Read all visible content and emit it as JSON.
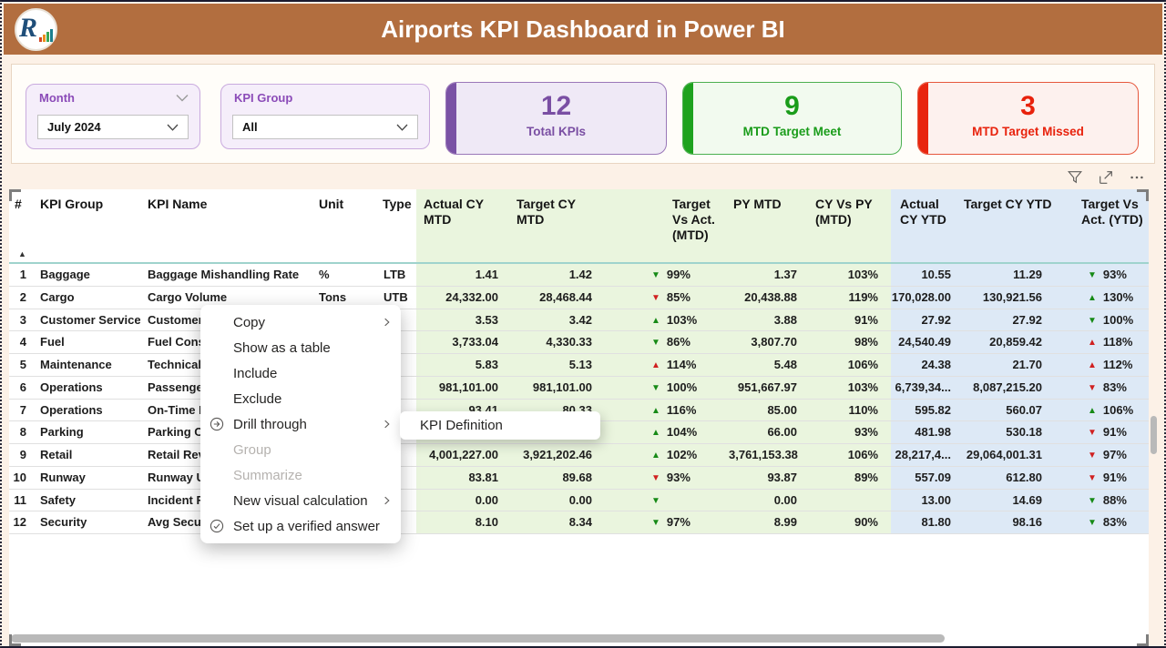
{
  "header": {
    "title": "Airports KPI Dashboard in Power BI",
    "logo_text": "R"
  },
  "slicers": {
    "month": {
      "label": "Month",
      "value": "July 2024"
    },
    "group": {
      "label": "KPI Group",
      "value": "All"
    }
  },
  "cards": [
    {
      "value": "12",
      "label": "Total KPIs",
      "color": "#7a4fa3"
    },
    {
      "value": "9",
      "label": "MTD Target Meet",
      "color": "#1a9c1a"
    },
    {
      "value": "3",
      "label": "MTD Target Missed",
      "color": "#e8220c"
    }
  ],
  "icons": {
    "visual_header": [
      "filter-icon",
      "focus-mode-icon",
      "more-options-icon"
    ],
    "menu": [
      "drill-through-icon",
      "verified-answer-icon",
      "submenu-chevron-icon"
    ],
    "trend": [
      "up-arrow-icon",
      "down-arrow-icon"
    ]
  },
  "colors": {
    "title_bar": "#b26e3f",
    "page_bg": "#fcf1e7",
    "mtd_zone": "#eaf5de",
    "ytd_zone": "#dde9f6",
    "arrow_green": "#168a16",
    "arrow_red": "#d02020",
    "card_purple": "#7a52a5",
    "card_green": "#1ea21e",
    "card_red": "#e8250e"
  },
  "table": {
    "headers": {
      "num": "#",
      "group": "KPI Group",
      "name": "KPI Name",
      "unit": "Unit",
      "type": "Type",
      "actual_mtd": "Actual CY MTD",
      "target_mtd": "Target CY MTD",
      "tva_mtd": "Target Vs Act. (MTD)",
      "py_mtd": "PY MTD",
      "cy_py": "CY Vs PY (MTD)",
      "actual_ytd": "Actual CY YTD",
      "target_ytd": "Target CY YTD",
      "tva_ytd": "Target Vs Act. (YTD)"
    },
    "sort_indicator": "▲",
    "rows": [
      {
        "num": "1",
        "group": "Baggage",
        "name": "Baggage Mishandling Rate",
        "unit": "%",
        "type": "LTB",
        "actual_mtd": "1.41",
        "target_mtd": "1.42",
        "tva_mtd": {
          "arrow": "▼",
          "color": "green",
          "pct": "99%"
        },
        "py_mtd": "1.37",
        "cy_py": "103%",
        "actual_ytd": "10.55",
        "target_ytd": "11.29",
        "tva_ytd": {
          "arrow": "▼",
          "color": "green",
          "pct": "93%"
        }
      },
      {
        "num": "2",
        "group": "Cargo",
        "name": "Cargo Volume",
        "unit": "Tons",
        "type": "UTB",
        "actual_mtd": "24,332.00",
        "target_mtd": "28,468.44",
        "tva_mtd": {
          "arrow": "▼",
          "color": "red",
          "pct": "85%"
        },
        "py_mtd": "20,438.88",
        "cy_py": "119%",
        "actual_ytd": "170,028.00",
        "target_ytd": "130,921.56",
        "tva_ytd": {
          "arrow": "▲",
          "color": "green",
          "pct": "130%"
        }
      },
      {
        "num": "3",
        "group": "Customer Service",
        "name": "Customer S",
        "unit": "",
        "type": "",
        "actual_mtd": "3.53",
        "target_mtd": "3.42",
        "tva_mtd": {
          "arrow": "▲",
          "color": "green",
          "pct": "103%"
        },
        "py_mtd": "3.88",
        "cy_py": "91%",
        "actual_ytd": "27.92",
        "target_ytd": "27.92",
        "tva_ytd": {
          "arrow": "▼",
          "color": "green",
          "pct": "100%"
        }
      },
      {
        "num": "4",
        "group": "Fuel",
        "name": "Fuel Consu",
        "unit": "",
        "type": "",
        "actual_mtd": "3,733.04",
        "target_mtd": "4,330.33",
        "tva_mtd": {
          "arrow": "▼",
          "color": "green",
          "pct": "86%"
        },
        "py_mtd": "3,807.70",
        "cy_py": "98%",
        "actual_ytd": "24,540.49",
        "target_ytd": "20,859.42",
        "tva_ytd": {
          "arrow": "▲",
          "color": "red",
          "pct": "118%"
        }
      },
      {
        "num": "5",
        "group": "Maintenance",
        "name": "Technical D",
        "unit": "",
        "type": "",
        "actual_mtd": "5.83",
        "target_mtd": "5.13",
        "tva_mtd": {
          "arrow": "▲",
          "color": "red",
          "pct": "114%"
        },
        "py_mtd": "5.48",
        "cy_py": "106%",
        "actual_ytd": "24.38",
        "target_ytd": "21.70",
        "tva_ytd": {
          "arrow": "▲",
          "color": "red",
          "pct": "112%"
        }
      },
      {
        "num": "6",
        "group": "Operations",
        "name": "Passenger",
        "unit": "",
        "type": "",
        "actual_mtd": "981,101.00",
        "target_mtd": "981,101.00",
        "tva_mtd": {
          "arrow": "▼",
          "color": "green",
          "pct": "100%"
        },
        "py_mtd": "951,667.97",
        "cy_py": "103%",
        "actual_ytd": "6,739,34...",
        "target_ytd": "8,087,215.20",
        "tva_ytd": {
          "arrow": "▼",
          "color": "red",
          "pct": "83%"
        }
      },
      {
        "num": "7",
        "group": "Operations",
        "name": "On-Time D",
        "unit": "",
        "type": "",
        "actual_mtd": "93.41",
        "target_mtd": "80.33",
        "tva_mtd": {
          "arrow": "▲",
          "color": "green",
          "pct": "116%"
        },
        "py_mtd": "85.00",
        "cy_py": "110%",
        "actual_ytd": "595.82",
        "target_ytd": "560.07",
        "tva_ytd": {
          "arrow": "▲",
          "color": "green",
          "pct": "106%"
        }
      },
      {
        "num": "8",
        "group": "Parking",
        "name": "Parking Oc",
        "unit": "",
        "type": "",
        "actual_mtd": "",
        "target_mtd": "",
        "tva_mtd": {
          "arrow": "▲",
          "color": "green",
          "pct": "104%"
        },
        "py_mtd": "66.00",
        "cy_py": "93%",
        "actual_ytd": "481.98",
        "target_ytd": "530.18",
        "tva_ytd": {
          "arrow": "▼",
          "color": "red",
          "pct": "91%"
        }
      },
      {
        "num": "9",
        "group": "Retail",
        "name": "Retail Reve",
        "unit": "",
        "type": "",
        "actual_mtd": "4,001,227.00",
        "target_mtd": "3,921,202.46",
        "tva_mtd": {
          "arrow": "▲",
          "color": "green",
          "pct": "102%"
        },
        "py_mtd": "3,761,153.38",
        "cy_py": "106%",
        "actual_ytd": "28,217,4...",
        "target_ytd": "29,064,001.31",
        "tva_ytd": {
          "arrow": "▼",
          "color": "red",
          "pct": "97%"
        }
      },
      {
        "num": "10",
        "group": "Runway",
        "name": "Runway Ut",
        "unit": "",
        "type": "",
        "actual_mtd": "83.81",
        "target_mtd": "89.68",
        "tva_mtd": {
          "arrow": "▼",
          "color": "red",
          "pct": "93%"
        },
        "py_mtd": "93.87",
        "cy_py": "89%",
        "actual_ytd": "557.09",
        "target_ytd": "612.80",
        "tva_ytd": {
          "arrow": "▼",
          "color": "red",
          "pct": "91%"
        }
      },
      {
        "num": "11",
        "group": "Safety",
        "name": "Incident Ra",
        "unit": "",
        "type": "",
        "actual_mtd": "0.00",
        "target_mtd": "0.00",
        "tva_mtd": {
          "arrow": "▼",
          "color": "green",
          "pct": ""
        },
        "py_mtd": "0.00",
        "cy_py": "",
        "actual_ytd": "13.00",
        "target_ytd": "14.69",
        "tva_ytd": {
          "arrow": "▼",
          "color": "green",
          "pct": "88%"
        }
      },
      {
        "num": "12",
        "group": "Security",
        "name": "Avg Securi",
        "unit": "",
        "type": "",
        "actual_mtd": "8.10",
        "target_mtd": "8.34",
        "tva_mtd": {
          "arrow": "▼",
          "color": "green",
          "pct": "97%"
        },
        "py_mtd": "8.99",
        "cy_py": "90%",
        "actual_ytd": "81.80",
        "target_ytd": "98.16",
        "tva_ytd": {
          "arrow": "▼",
          "color": "green",
          "pct": "83%"
        }
      }
    ]
  },
  "context_menu": {
    "items": [
      {
        "label": "Copy",
        "submenu": true
      },
      {
        "label": "Show as a table"
      },
      {
        "label": "Include"
      },
      {
        "label": "Exclude"
      },
      {
        "label": "Drill through",
        "icon": "drill-through",
        "submenu": true
      },
      {
        "label": "Group",
        "disabled": true
      },
      {
        "label": "Summarize",
        "disabled": true
      },
      {
        "label": "New visual calculation",
        "submenu": true
      },
      {
        "label": "Set up a verified answer",
        "icon": "verified-check"
      }
    ],
    "submenu_item": "KPI Definition"
  }
}
